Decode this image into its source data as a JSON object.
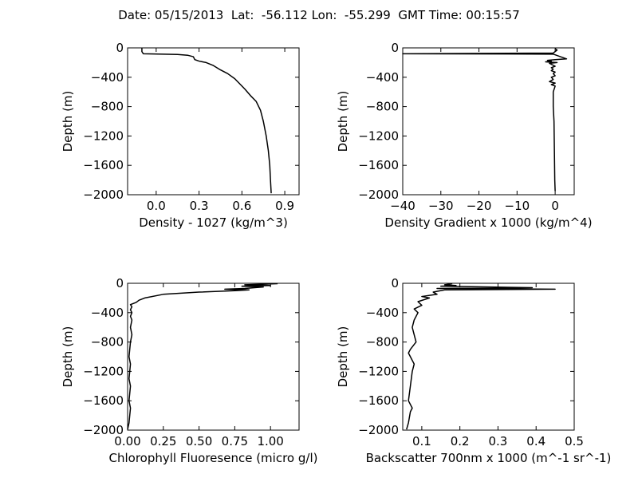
{
  "figure_title": "Date: 05/15/2013  Lat:  -56.112 Lon:  -55.299  GMT Time: 00:15:57",
  "chart_data": [
    {
      "type": "line",
      "xlabel": "Density - 1027 (kg/m^3)",
      "ylabel": "Depth (m)",
      "xlim": [
        -0.2,
        1.0
      ],
      "ylim": [
        -2000,
        0
      ],
      "xticks": [
        {
          "v": 0.0,
          "label": "0.0"
        },
        {
          "v": 0.3,
          "label": "0.3"
        },
        {
          "v": 0.6,
          "label": "0.6"
        },
        {
          "v": 0.9,
          "label": "0.9"
        }
      ],
      "yticks": [
        {
          "v": 0,
          "label": "0"
        },
        {
          "v": -400,
          "label": "−400"
        },
        {
          "v": -800,
          "label": "−800"
        },
        {
          "v": -1200,
          "label": "−1200"
        },
        {
          "v": -1600,
          "label": "−1600"
        },
        {
          "v": -2000,
          "label": "−2000"
        }
      ],
      "x": [
        -0.1,
        -0.1,
        -0.09,
        0.05,
        0.15,
        0.22,
        0.26,
        0.27,
        0.3,
        0.35,
        0.4,
        0.45,
        0.5,
        0.55,
        0.58,
        0.62,
        0.66,
        0.7,
        0.73,
        0.75,
        0.77,
        0.785,
        0.795,
        0.8,
        0.805
      ],
      "y": [
        0,
        -50,
        -80,
        -85,
        -90,
        -100,
        -120,
        -160,
        -180,
        -200,
        -240,
        -300,
        -350,
        -420,
        -480,
        -560,
        -650,
        -730,
        -850,
        -1000,
        -1200,
        -1400,
        -1600,
        -1800,
        -1980
      ]
    },
    {
      "type": "line",
      "xlabel": "Density Gradient x 1000 (kg/m^4)",
      "ylabel": "Depth (m)",
      "xlim": [
        -40,
        5
      ],
      "ylim": [
        -2000,
        0
      ],
      "xticks": [
        {
          "v": -40,
          "label": "−40"
        },
        {
          "v": -30,
          "label": "−30"
        },
        {
          "v": -20,
          "label": "−20"
        },
        {
          "v": -10,
          "label": "−10"
        },
        {
          "v": 0,
          "label": "0"
        }
      ],
      "yticks": [
        {
          "v": 0,
          "label": "0"
        },
        {
          "v": -400,
          "label": "−400"
        },
        {
          "v": -800,
          "label": "−800"
        },
        {
          "v": -1200,
          "label": "−1200"
        },
        {
          "v": -1600,
          "label": "−1600"
        },
        {
          "v": -2000,
          "label": "−2000"
        }
      ],
      "x": [
        0,
        0.5,
        0,
        -0.5,
        -40,
        -0.5,
        3,
        0,
        -2,
        -1,
        -2.5,
        0.5,
        -1.5,
        0,
        -1,
        -0.5,
        -1,
        0,
        -0.5,
        0,
        -1,
        -0.5,
        -1.5,
        0,
        -1,
        0,
        -0.5,
        -0.5,
        -0.3,
        -0.2,
        -0.1,
        0
      ],
      "y": [
        -10,
        -30,
        -50,
        -70,
        -80,
        -85,
        -150,
        -160,
        -170,
        -180,
        -190,
        -200,
        -210,
        -250,
        -270,
        -290,
        -310,
        -330,
        -350,
        -380,
        -400,
        -430,
        -460,
        -480,
        -500,
        -520,
        -600,
        -800,
        -1000,
        -1400,
        -1800,
        -1950
      ]
    },
    {
      "type": "line",
      "xlabel": "Chlorophyll Fluoresence (micro g/l)",
      "ylabel": "Depth (m)",
      "xlim": [
        0,
        1.2
      ],
      "ylim": [
        -2000,
        0
      ],
      "xticks": [
        {
          "v": 0.0,
          "label": "0.00"
        },
        {
          "v": 0.25,
          "label": "0.25"
        },
        {
          "v": 0.5,
          "label": "0.50"
        },
        {
          "v": 0.75,
          "label": "0.75"
        },
        {
          "v": 1.0,
          "label": "1.00"
        }
      ],
      "yticks": [
        {
          "v": 0,
          "label": "0"
        },
        {
          "v": -400,
          "label": "−400"
        },
        {
          "v": -800,
          "label": "−800"
        },
        {
          "v": -1200,
          "label": "−1200"
        },
        {
          "v": -1600,
          "label": "−1600"
        },
        {
          "v": -2000,
          "label": "−2000"
        }
      ],
      "x": [
        1.05,
        0.82,
        1.0,
        0.8,
        0.95,
        0.82,
        0.68,
        0.85,
        0.75,
        0.5,
        0.25,
        0.12,
        0.08,
        0.06,
        0.02,
        0.03,
        0.02,
        0.03,
        0.02,
        0.03,
        0.02,
        0.03,
        0.02,
        0.01,
        0.02,
        0.01,
        0.02,
        0.01,
        0.02,
        0.01,
        0.0
      ],
      "y": [
        -5,
        -20,
        -30,
        -40,
        -50,
        -70,
        -80,
        -90,
        -100,
        -120,
        -150,
        -200,
        -230,
        -260,
        -290,
        -320,
        -360,
        -400,
        -450,
        -500,
        -600,
        -700,
        -800,
        -1000,
        -1100,
        -1300,
        -1400,
        -1600,
        -1700,
        -1900,
        -1990
      ]
    },
    {
      "type": "line",
      "xlabel": "Backscatter 700nm x 1000 (m^-1 sr^-1)",
      "ylabel": "Depth (m)",
      "xlim": [
        0.05,
        0.5
      ],
      "ylim": [
        -2000,
        0
      ],
      "xticks": [
        {
          "v": 0.1,
          "label": "0.1"
        },
        {
          "v": 0.2,
          "label": "0.2"
        },
        {
          "v": 0.3,
          "label": "0.3"
        },
        {
          "v": 0.4,
          "label": "0.4"
        },
        {
          "v": 0.5,
          "label": "0.5"
        }
      ],
      "yticks": [
        {
          "v": 0,
          "label": "0"
        },
        {
          "v": -400,
          "label": "−400"
        },
        {
          "v": -800,
          "label": "−800"
        },
        {
          "v": -1200,
          "label": "−1200"
        },
        {
          "v": -1600,
          "label": "−1600"
        },
        {
          "v": -2000,
          "label": "−2000"
        }
      ],
      "x": [
        0.18,
        0.16,
        0.19,
        0.15,
        0.39,
        0.14,
        0.45,
        0.16,
        0.13,
        0.14,
        0.1,
        0.12,
        0.09,
        0.1,
        0.08,
        0.09,
        0.08,
        0.075,
        0.08,
        0.085,
        0.07,
        0.065,
        0.07,
        0.08,
        0.075,
        0.07,
        0.065,
        0.075,
        0.07,
        0.065,
        0.06
      ],
      "y": [
        -5,
        -20,
        -30,
        -40,
        -60,
        -70,
        -80,
        -90,
        -120,
        -150,
        -180,
        -200,
        -250,
        -300,
        -350,
        -400,
        -500,
        -600,
        -700,
        -800,
        -900,
        -950,
        -1000,
        -1100,
        -1200,
        -1400,
        -1600,
        -1700,
        -1750,
        -1900,
        -1990
      ]
    }
  ]
}
